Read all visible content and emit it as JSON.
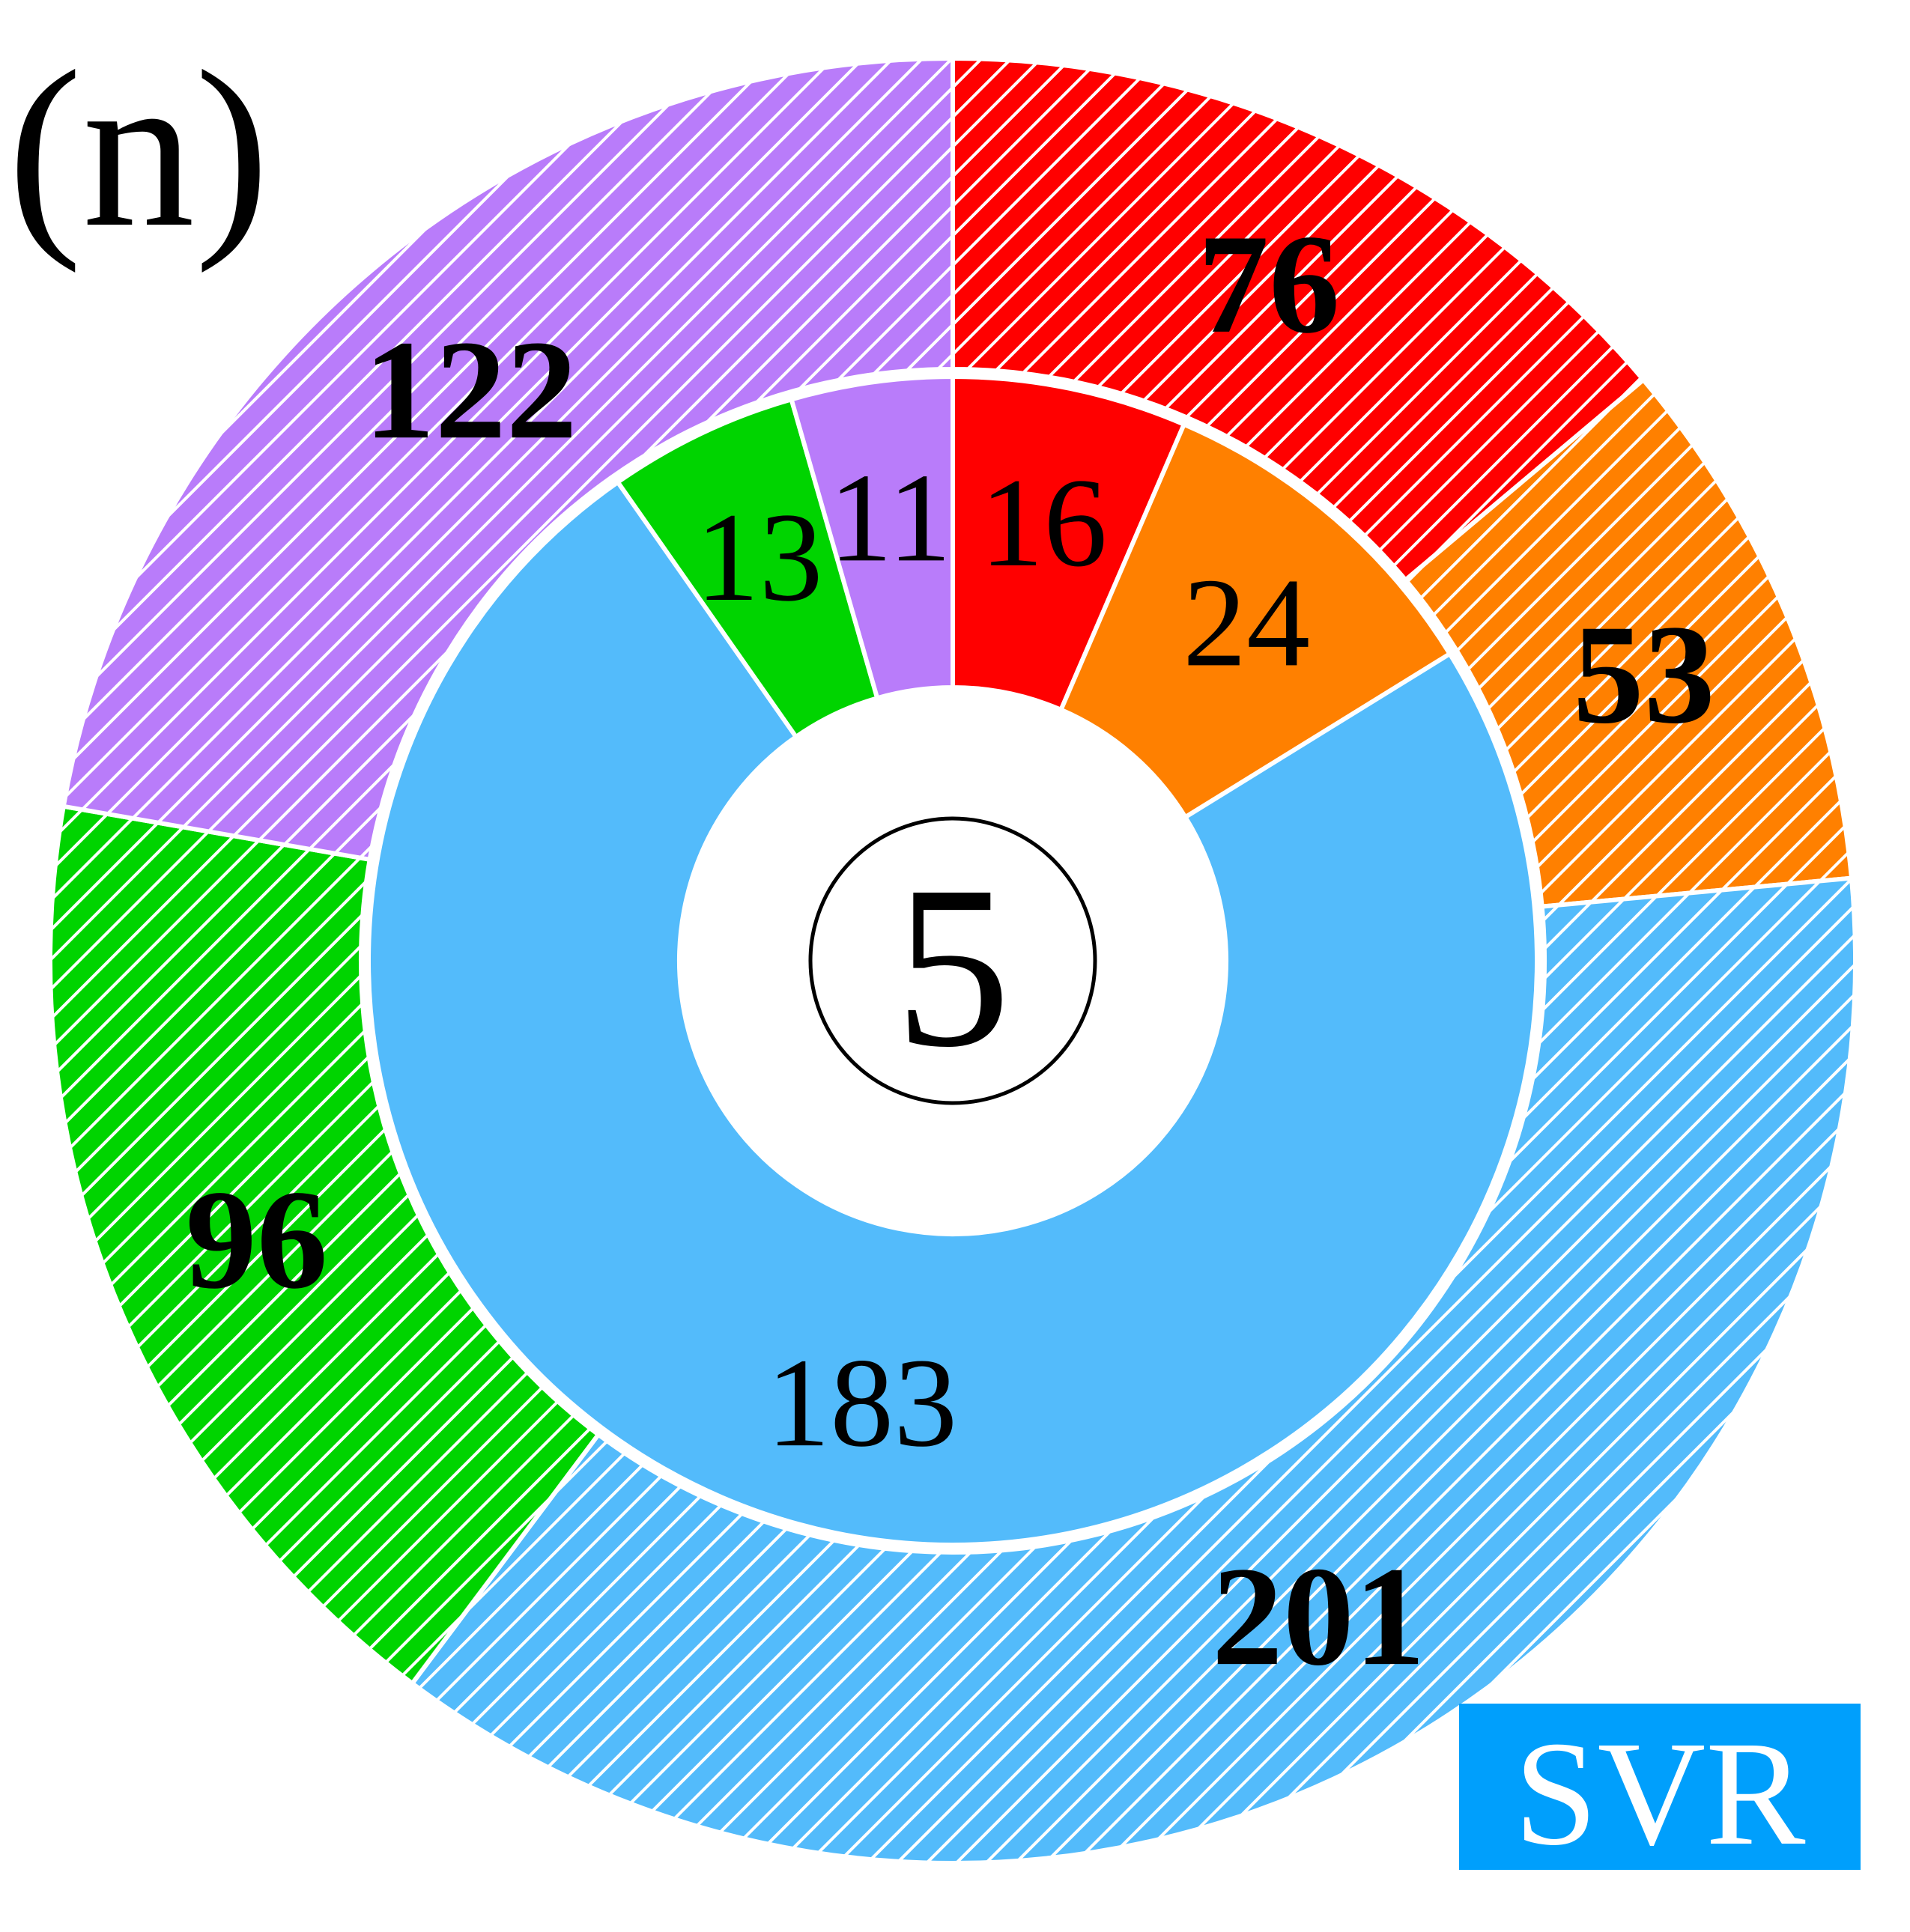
{
  "panel_label": "(n)",
  "center_label": "5",
  "badge": {
    "text": "SVR",
    "color": "#009ffc",
    "text_color": "#ffffff"
  },
  "chart_data": {
    "type": "pie",
    "subtype": "nested-donut",
    "start": "top",
    "direction": "clockwise",
    "colors": {
      "red": "#ff0000",
      "orange": "#ff8000",
      "blue": "#53bbfb",
      "green": "#00d400",
      "purple": "#b97cfa"
    },
    "outer_ring": {
      "pattern": "diagonal-hatch",
      "label_weight": "bold",
      "slices": [
        {
          "color": "red",
          "value": 76
        },
        {
          "color": "orange",
          "value": 53
        },
        {
          "color": "blue",
          "value": 201
        },
        {
          "color": "green",
          "value": 96
        },
        {
          "color": "purple",
          "value": 122
        }
      ]
    },
    "inner_ring": {
      "pattern": "solid",
      "label_weight": "normal",
      "slices": [
        {
          "color": "red",
          "value": 16
        },
        {
          "color": "orange",
          "value": 24
        },
        {
          "color": "blue",
          "value": 183
        },
        {
          "color": "green",
          "value": 13
        },
        {
          "color": "purple",
          "value": 11
        }
      ]
    }
  }
}
